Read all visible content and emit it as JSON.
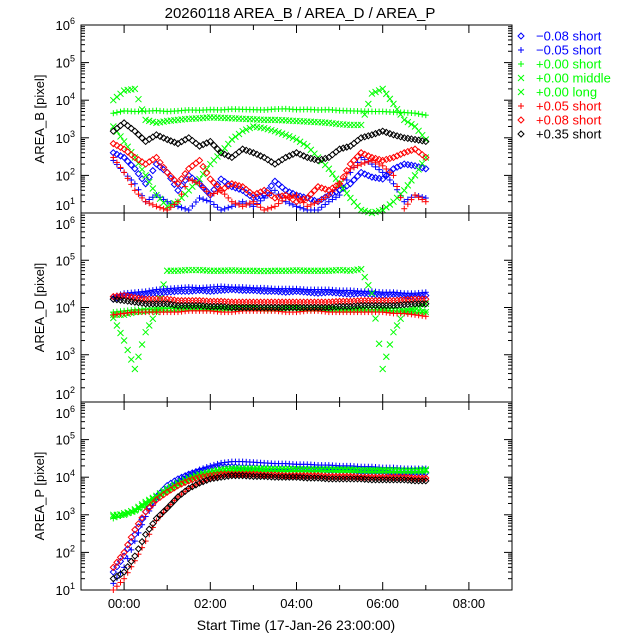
{
  "chart_data": {
    "type": "scatter",
    "title": "20260118 AREA_B / AREA_D / AREA_P",
    "xlabel": "Start Time (17-Jan-26 23:00:00)",
    "x_units": "hours after 00:00",
    "xlim": [
      -1,
      9
    ],
    "x_ticks": [
      {
        "value": 0,
        "label": "00:00"
      },
      {
        "value": 2,
        "label": "02:00"
      },
      {
        "value": 4,
        "label": "04:00"
      },
      {
        "value": 6,
        "label": "06:00"
      },
      {
        "value": 8,
        "label": "08:00"
      }
    ],
    "grid": false,
    "legend_position": "right-top-outside",
    "legend": [
      {
        "label": "−0.08 short",
        "marker": "diamond",
        "color": "#0000ff"
      },
      {
        "label": "−0.05 short",
        "marker": "plus",
        "color": "#0000ff"
      },
      {
        "label": "+0.00 short",
        "marker": "plus",
        "color": "#00ff00"
      },
      {
        "label": "+0.00 middle",
        "marker": "cross",
        "color": "#00ff00"
      },
      {
        "label": "+0.00 long",
        "marker": "cross",
        "color": "#00ff00"
      },
      {
        "label": "+0.05 short",
        "marker": "plus",
        "color": "#ff0000"
      },
      {
        "label": "+0.08 short",
        "marker": "diamond",
        "color": "#ff0000"
      },
      {
        "label": "+0.35 short",
        "marker": "diamond",
        "color": "#000000"
      }
    ],
    "x_grid": {
      "start": -0.25,
      "step": 0.25
    },
    "panels": [
      {
        "ylabel": "AREA_B [pixel]",
        "yscale": "log",
        "ylim": [
          10,
          1000000
        ],
        "y_tick_exponents": [
          1,
          2,
          3,
          4,
          5,
          6
        ],
        "series": [
          [
            400,
            300,
            150,
            60,
            200,
            120,
            40,
            100,
            60,
            30,
            80,
            50,
            40,
            25,
            30,
            70,
            40,
            30,
            25,
            20,
            30,
            40,
            60,
            120,
            90,
            80,
            150,
            200,
            180,
            150
          ],
          [
            250,
            120,
            60,
            20,
            30,
            20,
            15,
            12,
            25,
            20,
            12,
            15,
            20,
            15,
            25,
            40,
            20,
            15,
            12,
            12,
            20,
            30,
            120,
            300,
            200,
            120,
            60,
            20,
            30,
            25
          ],
          [
            4500,
            5200,
            5000,
            5100,
            5300,
            5000,
            5200,
            5500,
            5400,
            5600,
            5500,
            5800,
            5700,
            5600,
            5500,
            5800,
            5900,
            5600,
            5700,
            5500,
            5600,
            5300,
            5200,
            5100,
            5000,
            5000,
            4800,
            4700,
            4500,
            4000
          ],
          [
            10000,
            18000,
            20000,
            3000,
            2500,
            2800,
            3000,
            3200,
            3300,
            3500,
            3400,
            3300,
            3200,
            3100,
            3000,
            3000,
            2900,
            2800,
            2700,
            2600,
            2500,
            2300,
            2200,
            2200,
            15000,
            20000,
            8000,
            3000,
            2000,
            900
          ],
          [
            2000,
            800,
            300,
            100,
            30,
            15,
            20,
            40,
            80,
            200,
            400,
            900,
            1500,
            2000,
            1800,
            1500,
            1200,
            900,
            600,
            300,
            150,
            60,
            25,
            12,
            10,
            12,
            20,
            40,
            100,
            300
          ],
          [
            300,
            120,
            40,
            20,
            15,
            12,
            20,
            80,
            60,
            30,
            40,
            20,
            15,
            20,
            12,
            15,
            25,
            30,
            15,
            20,
            30,
            60,
            150,
            200,
            250,
            180,
            100,
            13,
            30,
            20
          ],
          [
            700,
            500,
            300,
            200,
            300,
            120,
            60,
            150,
            250,
            80,
            40,
            60,
            50,
            30,
            40,
            25,
            30,
            20,
            25,
            50,
            40,
            60,
            200,
            400,
            300,
            250,
            300,
            400,
            500,
            300
          ],
          [
            1500,
            2500,
            1500,
            800,
            1200,
            900,
            700,
            1000,
            600,
            800,
            400,
            300,
            500,
            400,
            300,
            200,
            300,
            400,
            300,
            250,
            300,
            500,
            600,
            1000,
            1200,
            1500,
            1200,
            1000,
            900,
            800
          ]
        ]
      },
      {
        "ylabel": "AREA_D [pixel]",
        "yscale": "log",
        "ylim": [
          100,
          1000000
        ],
        "y_tick_exponents": [
          2,
          3,
          4,
          5,
          6
        ],
        "series": [
          [
            15000,
            18000,
            18000,
            19000,
            20000,
            21000,
            22000,
            22000,
            23000,
            22000,
            23000,
            24000,
            23000,
            23000,
            22000,
            22000,
            21000,
            22000,
            21000,
            20000,
            21000,
            20000,
            19000,
            20000,
            19000,
            18000,
            19000,
            18000,
            17000,
            18000
          ],
          [
            17000,
            20000,
            21000,
            22000,
            24000,
            25000,
            26000,
            27000,
            26000,
            27000,
            28000,
            27000,
            27000,
            26000,
            26000,
            25000,
            25000,
            25000,
            24000,
            24000,
            24000,
            23000,
            23000,
            22000,
            22000,
            21000,
            21000,
            20000,
            20000,
            21000
          ],
          [
            8000,
            8500,
            9000,
            9000,
            9000,
            9500,
            9500,
            9500,
            9500,
            9000,
            9500,
            9500,
            9500,
            9500,
            9000,
            9000,
            9500,
            9500,
            9000,
            9000,
            9500,
            9000,
            9000,
            9000,
            9000,
            9000,
            8500,
            8500,
            8000,
            8000
          ],
          [
            6000,
            2000,
            500,
            3000,
            8000,
            60000,
            60000,
            62000,
            62000,
            60000,
            60000,
            61000,
            60000,
            60000,
            59000,
            60000,
            60000,
            61000,
            60000,
            60000,
            60000,
            62000,
            60000,
            65000,
            20000,
            500,
            3000,
            8000,
            10000,
            12000
          ],
          [
            7000,
            7000,
            8000,
            8500,
            9000,
            9000,
            9500,
            10000,
            10000,
            10000,
            9500,
            10000,
            10000,
            10000,
            9500,
            9500,
            10000,
            10000,
            9500,
            9500,
            9500,
            9000,
            9000,
            9000,
            9500,
            9000,
            9000,
            8500,
            8500,
            8000
          ],
          [
            7000,
            7500,
            8000,
            8000,
            8000,
            8000,
            8000,
            8500,
            8500,
            8500,
            8000,
            8000,
            8500,
            8500,
            8500,
            8500,
            8000,
            8000,
            8500,
            8500,
            8000,
            8000,
            8000,
            8000,
            8000,
            8000,
            7500,
            7500,
            7000,
            6500
          ],
          [
            17000,
            18000,
            16000,
            15000,
            15000,
            15000,
            14000,
            14000,
            14000,
            13500,
            13500,
            13000,
            13000,
            13000,
            13000,
            13000,
            13000,
            13000,
            13000,
            13000,
            13000,
            13500,
            13500,
            14000,
            14000,
            14000,
            14000,
            14500,
            15000,
            15000
          ],
          [
            15000,
            14000,
            13000,
            12000,
            12000,
            12000,
            11000,
            11000,
            11000,
            10500,
            10500,
            10000,
            10000,
            10000,
            10000,
            10000,
            10000,
            10000,
            10000,
            10000,
            10000,
            10500,
            10500,
            11000,
            11000,
            11000,
            11000,
            11500,
            12000,
            12000
          ]
        ]
      },
      {
        "ylabel": "AREA_P [pixel]",
        "yscale": "log",
        "ylim": [
          10,
          1000000
        ],
        "y_tick_exponents": [
          1,
          2,
          3,
          4,
          5,
          6
        ],
        "series": [
          [
            30,
            80,
            300,
            1200,
            3000,
            6000,
            9000,
            12000,
            15000,
            17000,
            19000,
            19000,
            18000,
            18000,
            17000,
            17000,
            17000,
            16000,
            16000,
            16000,
            15000,
            15000,
            15000,
            14000,
            14000,
            14000,
            13000,
            13000,
            13000,
            13000
          ],
          [
            15,
            40,
            200,
            900,
            2500,
            5000,
            8000,
            12000,
            16000,
            20000,
            24000,
            26000,
            26000,
            25000,
            24000,
            23000,
            23000,
            22000,
            22000,
            21000,
            21000,
            20000,
            20000,
            19000,
            19000,
            18000,
            18000,
            17000,
            17000,
            17000
          ],
          [
            800,
            1000,
            1200,
            1800,
            2800,
            4000,
            6000,
            8000,
            10000,
            12000,
            14000,
            15000,
            15000,
            15000,
            15000,
            15000,
            15000,
            15000,
            15000,
            15000,
            15000,
            15000,
            15000,
            14500,
            14500,
            14500,
            14000,
            14000,
            14000,
            14000
          ],
          [
            900,
            1100,
            1300,
            2000,
            3000,
            4500,
            6500,
            9000,
            11000,
            13000,
            15000,
            16000,
            16000,
            16000,
            16000,
            16000,
            16000,
            16000,
            16000,
            16000,
            16000,
            15500,
            15500,
            15500,
            15000,
            15000,
            15000,
            15000,
            15000,
            15000
          ],
          [
            1000,
            1000,
            1400,
            2200,
            3200,
            5000,
            7000,
            9500,
            12000,
            14000,
            16000,
            17000,
            17000,
            17000,
            17000,
            16500,
            16500,
            16500,
            16000,
            16000,
            16000,
            16000,
            16000,
            15500,
            15500,
            15500,
            15500,
            15000,
            15000,
            16000
          ],
          [
            10,
            20,
            60,
            200,
            700,
            1500,
            3000,
            5000,
            7000,
            9000,
            11000,
            12000,
            12000,
            12000,
            11500,
            11000,
            11000,
            11000,
            10500,
            10500,
            10000,
            10000,
            10000,
            10000,
            10000,
            10000,
            9500,
            9500,
            9000,
            9000
          ],
          [
            40,
            100,
            400,
            1200,
            2500,
            4000,
            6000,
            8000,
            10000,
            11000,
            12000,
            12000,
            12000,
            12000,
            11500,
            11500,
            11000,
            11000,
            11000,
            11000,
            10500,
            10500,
            10500,
            10000,
            10000,
            10000,
            10000,
            10000,
            9500,
            9500
          ],
          [
            20,
            30,
            80,
            300,
            800,
            1500,
            3000,
            5000,
            7000,
            9000,
            10000,
            11000,
            11000,
            10500,
            10500,
            10000,
            10000,
            10000,
            9500,
            9500,
            9000,
            9000,
            9000,
            9000,
            8500,
            8500,
            8500,
            8500,
            8000,
            8000
          ]
        ]
      }
    ]
  }
}
